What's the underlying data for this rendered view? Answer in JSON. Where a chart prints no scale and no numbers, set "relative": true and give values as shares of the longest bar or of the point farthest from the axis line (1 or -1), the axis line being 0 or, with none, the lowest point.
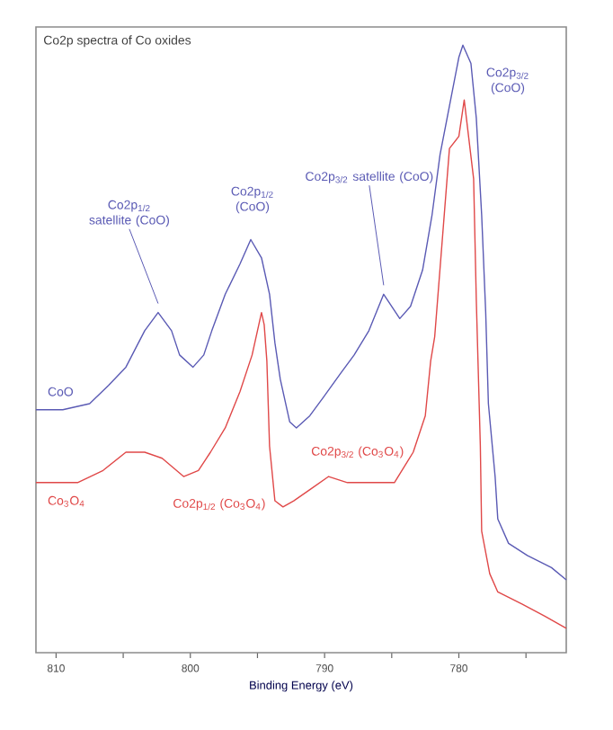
{
  "chart_data": {
    "type": "line",
    "title": "Co2p spectra of Co oxides",
    "xlabel": "Binding Energy (eV)",
    "relative": true,
    "tick_labels": "x",
    "line_style": "solid",
    "xlim": [
      811.5,
      772
    ],
    "xticks": [
      810,
      {
        "value": 805,
        "label": null
      },
      800,
      {
        "value": 795,
        "label": null
      },
      790,
      {
        "value": 785,
        "label": null
      },
      780,
      {
        "value": 775,
        "label": null
      }
    ],
    "series": [
      {
        "name": "CoO",
        "color": "#5a5ab4",
        "x": [
          811.5,
          809.5,
          807.5,
          806.1,
          804.8,
          803.4,
          802.4,
          801.4,
          800.8,
          799.8,
          799.0,
          798.4,
          797.4,
          796.3,
          795.5,
          794.7,
          794.1,
          793.7,
          793.3,
          792.6,
          792.1,
          791.1,
          790.1,
          788.8,
          787.8,
          786.7,
          785.6,
          784.4,
          783.6,
          782.7,
          782.0,
          781.4,
          780.7,
          780.0,
          779.7,
          779.1,
          778.7,
          778.3,
          778.0,
          777.8,
          777.3,
          777.1,
          776.3,
          774.9,
          773.1,
          772.0
        ],
        "values": [
          0.4,
          0.4,
          0.41,
          0.44,
          0.47,
          0.53,
          0.56,
          0.53,
          0.49,
          0.47,
          0.49,
          0.53,
          0.59,
          0.64,
          0.68,
          0.65,
          0.59,
          0.51,
          0.45,
          0.38,
          0.37,
          0.39,
          0.42,
          0.46,
          0.49,
          0.53,
          0.59,
          0.55,
          0.57,
          0.63,
          0.72,
          0.82,
          0.9,
          0.98,
          1.0,
          0.97,
          0.88,
          0.72,
          0.56,
          0.41,
          0.29,
          0.22,
          0.18,
          0.16,
          0.14,
          0.12
        ]
      },
      {
        "name": "Co$_{3}$O$_{4}$",
        "color": "#e04848",
        "x": [
          811.5,
          808.4,
          806.5,
          804.8,
          803.4,
          802.1,
          800.5,
          799.4,
          798.5,
          797.4,
          796.3,
          795.4,
          795.0,
          794.7,
          794.5,
          794.3,
          794.1,
          793.7,
          793.1,
          792.3,
          791.0,
          789.7,
          788.3,
          786.5,
          784.8,
          783.4,
          782.5,
          782.1,
          781.8,
          780.7,
          780.0,
          779.6,
          778.9,
          778.7,
          778.4,
          778.3,
          777.7,
          777.1,
          775.3,
          773.6,
          772.0
        ],
        "values": [
          0.28,
          0.28,
          0.3,
          0.33,
          0.33,
          0.32,
          0.29,
          0.3,
          0.33,
          0.37,
          0.43,
          0.49,
          0.53,
          0.56,
          0.54,
          0.48,
          0.34,
          0.25,
          0.24,
          0.25,
          0.27,
          0.29,
          0.28,
          0.28,
          0.28,
          0.33,
          0.39,
          0.48,
          0.52,
          0.83,
          0.85,
          0.91,
          0.78,
          0.58,
          0.34,
          0.2,
          0.13,
          0.1,
          0.08,
          0.06,
          0.04
        ]
      }
    ],
    "annotations": [
      {
        "text": "Co2p$_{1/2}$ satellite (CoO)",
        "x": 802.4,
        "y": 0.56
      },
      {
        "text": "Co2p$_{1/2}$ (CoO)",
        "x": 795.5,
        "y": 0.68
      },
      {
        "text": "Co2p$_{3/2}$ satellite (CoO)",
        "x": 785.6,
        "y": 0.59
      },
      {
        "text": "Co2p$_{3/2}$ (CoO)",
        "x": 779.7,
        "y": 1.0
      },
      {
        "text": "Co2p$_{1/2}$ (Co$_{3}$O$_{4}$)",
        "x": 793.7,
        "y": 0.25
      },
      {
        "text": "Co2p$_{3/2}$ (Co$_{3}$O$_{4}$)",
        "x": 783.4,
        "y": 0.33
      }
    ]
  }
}
